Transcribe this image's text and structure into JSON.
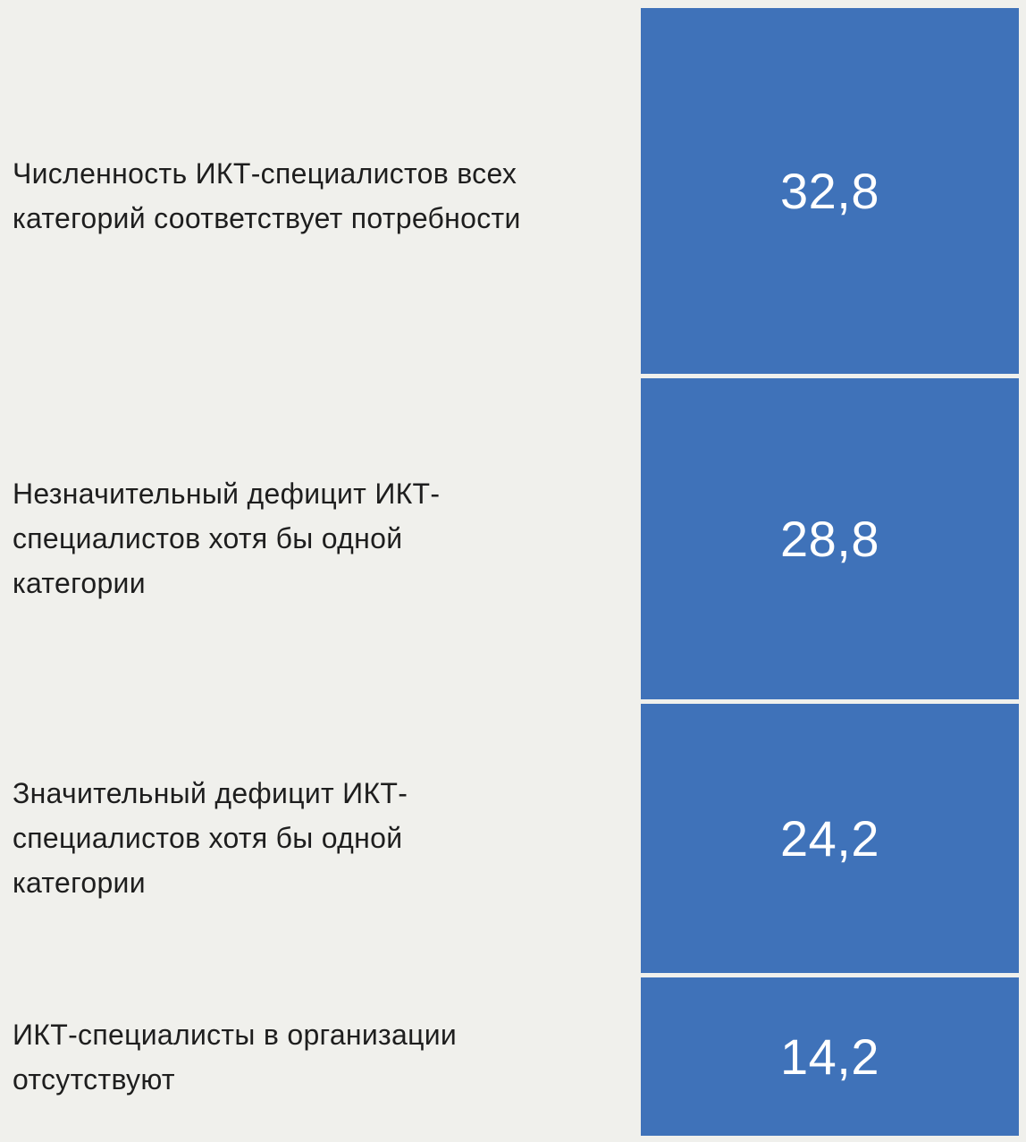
{
  "chart_data": {
    "type": "bar",
    "categories": [
      "Численность ИКТ-специалистов всех категорий соответствует потребности",
      "Незначительный дефицит ИКТ-специалистов хотя бы одной категории",
      "Значительный дефицит ИКТ-специалистов хотя бы одной категории",
      "ИКТ-специалисты в организации отсутствуют"
    ],
    "values": [
      32.8,
      28.8,
      24.2,
      14.2
    ],
    "value_labels": [
      "32,8",
      "28,8",
      "24,2",
      "14,2"
    ],
    "colors": {
      "bar": "#3f72b9",
      "background": "#f0f0ec",
      "text": "#1e1e1e",
      "value_text": "#ffffff"
    }
  }
}
